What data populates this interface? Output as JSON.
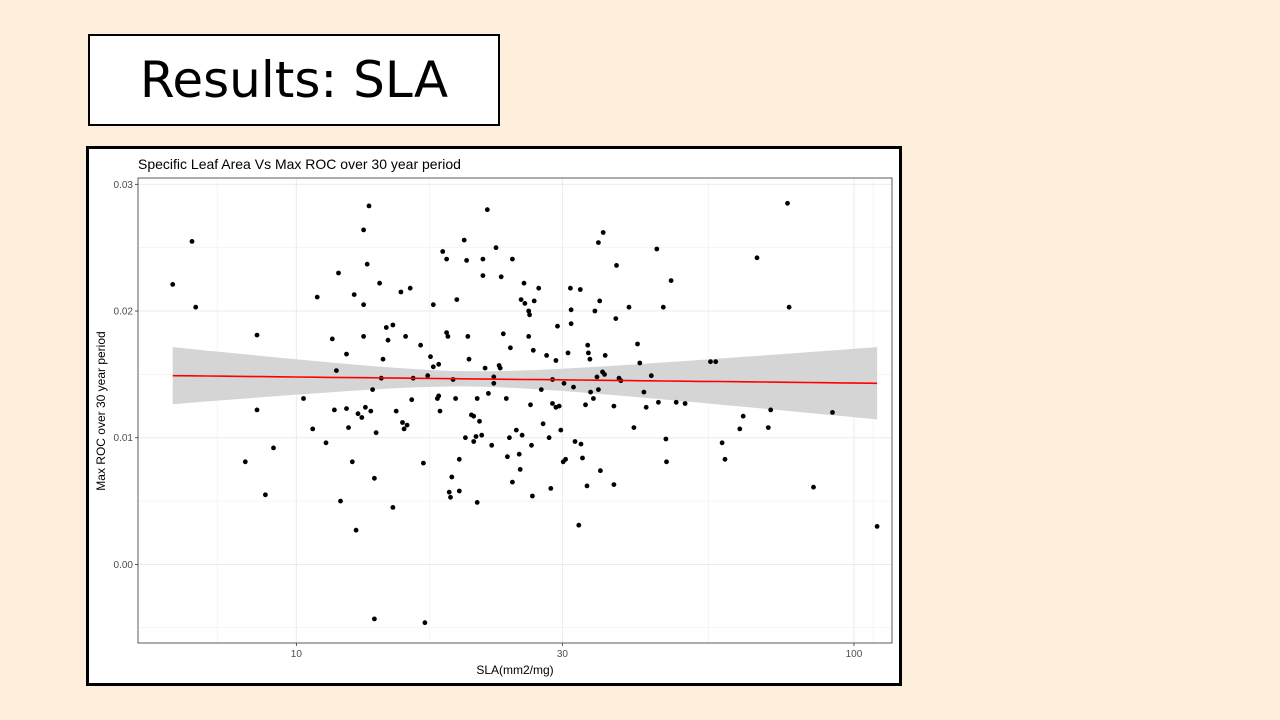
{
  "slide": {
    "title": "Results: SLA"
  },
  "colors": {
    "background": "#fdefdb",
    "ribbon": "#d3d3d3",
    "trend_line": "#ff0000",
    "points": "#000000",
    "grid": "#ebebeb"
  },
  "chart_data": {
    "type": "scatter",
    "title": "Specific Leaf Area Vs Max ROC over 30 year period",
    "xlabel": "SLA(mm2/mg)",
    "ylabel": "Max ROC over 30 year period",
    "x_scale": "log10",
    "xlim": [
      5.2,
      117
    ],
    "ylim": [
      -0.0062,
      0.0305
    ],
    "x_ticks": [
      10,
      30,
      100
    ],
    "x_tick_labels": [
      "10",
      "30",
      "100"
    ],
    "y_ticks": [
      0.0,
      0.01,
      0.02,
      0.03
    ],
    "y_tick_labels": [
      "0.00",
      "0.01",
      "0.02",
      "0.03"
    ],
    "grid": true,
    "trend": {
      "x": [
        6,
        110
      ],
      "y": [
        0.0149,
        0.0143
      ],
      "ci_lower": [
        0.0126,
        0.0114
      ],
      "ci_upper": [
        0.0171,
        0.0171
      ]
    },
    "points": [
      [
        6.0,
        0.0221
      ],
      [
        6.5,
        0.0255
      ],
      [
        6.6,
        0.0203
      ],
      [
        8.1,
        0.0081
      ],
      [
        8.5,
        0.0181
      ],
      [
        8.5,
        0.0122
      ],
      [
        8.8,
        0.0055
      ],
      [
        9.1,
        0.0092
      ],
      [
        10.3,
        0.0131
      ],
      [
        10.7,
        0.0107
      ],
      [
        10.9,
        0.0211
      ],
      [
        11.3,
        0.0096
      ],
      [
        11.6,
        0.0178
      ],
      [
        11.7,
        0.0122
      ],
      [
        11.8,
        0.0153
      ],
      [
        11.9,
        0.023
      ],
      [
        12.0,
        0.005
      ],
      [
        12.3,
        0.0123
      ],
      [
        12.3,
        0.0166
      ],
      [
        12.4,
        0.0108
      ],
      [
        12.6,
        0.0081
      ],
      [
        12.7,
        0.0213
      ],
      [
        12.8,
        0.0027
      ],
      [
        12.9,
        0.0119
      ],
      [
        13.1,
        0.0116
      ],
      [
        13.2,
        0.0264
      ],
      [
        13.2,
        0.018
      ],
      [
        13.2,
        0.0205
      ],
      [
        13.3,
        0.0124
      ],
      [
        13.4,
        0.0237
      ],
      [
        13.5,
        0.0283
      ],
      [
        13.6,
        0.0121
      ],
      [
        13.7,
        0.0138
      ],
      [
        13.8,
        0.0068
      ],
      [
        13.9,
        0.0104
      ],
      [
        13.8,
        -0.0043
      ],
      [
        14.1,
        0.0222
      ],
      [
        14.2,
        0.0147
      ],
      [
        14.3,
        0.0162
      ],
      [
        14.5,
        0.0187
      ],
      [
        14.6,
        0.0177
      ],
      [
        14.9,
        0.0189
      ],
      [
        14.9,
        0.0045
      ],
      [
        15.1,
        0.0121
      ],
      [
        15.4,
        0.0215
      ],
      [
        15.5,
        0.0112
      ],
      [
        15.6,
        0.0107
      ],
      [
        15.7,
        0.018
      ],
      [
        15.8,
        0.011
      ],
      [
        16.0,
        0.0218
      ],
      [
        16.1,
        0.013
      ],
      [
        16.2,
        0.0147
      ],
      [
        16.7,
        0.0173
      ],
      [
        16.9,
        0.008
      ],
      [
        17.0,
        -0.0046
      ],
      [
        17.2,
        0.0149
      ],
      [
        17.4,
        0.0164
      ],
      [
        17.6,
        0.0205
      ],
      [
        17.6,
        0.0156
      ],
      [
        17.9,
        0.0131
      ],
      [
        18.0,
        0.0133
      ],
      [
        18.0,
        0.0158
      ],
      [
        18.1,
        0.0121
      ],
      [
        18.3,
        0.0247
      ],
      [
        18.6,
        0.0241
      ],
      [
        18.6,
        0.0183
      ],
      [
        18.7,
        0.018
      ],
      [
        18.8,
        0.0057
      ],
      [
        18.9,
        0.0053
      ],
      [
        19.0,
        0.0069
      ],
      [
        19.1,
        0.0146
      ],
      [
        19.3,
        0.0131
      ],
      [
        19.4,
        0.0209
      ],
      [
        19.6,
        0.0083
      ],
      [
        19.6,
        0.0058
      ],
      [
        20.0,
        0.0256
      ],
      [
        20.1,
        0.01
      ],
      [
        20.2,
        0.024
      ],
      [
        20.3,
        0.018
      ],
      [
        20.4,
        0.0162
      ],
      [
        20.6,
        0.0118
      ],
      [
        20.8,
        0.0097
      ],
      [
        20.8,
        0.0117
      ],
      [
        21.0,
        0.0101
      ],
      [
        21.1,
        0.0131
      ],
      [
        21.1,
        0.0049
      ],
      [
        21.3,
        0.0113
      ],
      [
        21.5,
        0.0102
      ],
      [
        21.6,
        0.0241
      ],
      [
        21.6,
        0.0228
      ],
      [
        21.8,
        0.0155
      ],
      [
        22.0,
        0.028
      ],
      [
        22.1,
        0.0135
      ],
      [
        22.4,
        0.0094
      ],
      [
        22.6,
        0.0143
      ],
      [
        22.6,
        0.0148
      ],
      [
        22.8,
        0.025
      ],
      [
        23.1,
        0.0157
      ],
      [
        23.2,
        0.0155
      ],
      [
        23.3,
        0.0227
      ],
      [
        23.5,
        0.0182
      ],
      [
        23.8,
        0.0131
      ],
      [
        23.9,
        0.0085
      ],
      [
        24.1,
        0.01
      ],
      [
        24.2,
        0.0171
      ],
      [
        24.4,
        0.0065
      ],
      [
        24.4,
        0.0241
      ],
      [
        24.8,
        0.0106
      ],
      [
        25.1,
        0.0087
      ],
      [
        25.2,
        0.0075
      ],
      [
        25.3,
        0.0209
      ],
      [
        25.4,
        0.0102
      ],
      [
        25.6,
        0.0222
      ],
      [
        25.7,
        0.0206
      ],
      [
        26.1,
        0.02
      ],
      [
        26.1,
        0.018
      ],
      [
        26.2,
        0.0197
      ],
      [
        26.3,
        0.0126
      ],
      [
        26.4,
        0.0094
      ],
      [
        26.5,
        0.0054
      ],
      [
        26.6,
        0.0169
      ],
      [
        26.7,
        0.0208
      ],
      [
        27.2,
        0.0218
      ],
      [
        27.5,
        0.0138
      ],
      [
        27.7,
        0.0111
      ],
      [
        28.1,
        0.0165
      ],
      [
        28.4,
        0.01
      ],
      [
        28.6,
        0.006
      ],
      [
        28.8,
        0.0127
      ],
      [
        28.8,
        0.0146
      ],
      [
        29.2,
        0.0161
      ],
      [
        29.2,
        0.0124
      ],
      [
        29.4,
        0.0188
      ],
      [
        29.6,
        0.0125
      ],
      [
        29.8,
        0.0106
      ],
      [
        30.1,
        0.0081
      ],
      [
        30.2,
        0.0143
      ],
      [
        30.4,
        0.0083
      ],
      [
        30.7,
        0.0167
      ],
      [
        31.0,
        0.0218
      ],
      [
        31.1,
        0.0201
      ],
      [
        31.1,
        0.019
      ],
      [
        31.4,
        0.014
      ],
      [
        31.6,
        0.0097
      ],
      [
        32.1,
        0.0031
      ],
      [
        32.3,
        0.0217
      ],
      [
        32.4,
        0.0095
      ],
      [
        32.6,
        0.0084
      ],
      [
        33.0,
        0.0126
      ],
      [
        33.2,
        0.0062
      ],
      [
        33.3,
        0.0173
      ],
      [
        33.4,
        0.0167
      ],
      [
        33.6,
        0.0162
      ],
      [
        33.7,
        0.0136
      ],
      [
        34.1,
        0.0131
      ],
      [
        34.3,
        0.02
      ],
      [
        34.6,
        0.0148
      ],
      [
        34.8,
        0.0138
      ],
      [
        34.8,
        0.0254
      ],
      [
        35.0,
        0.0208
      ],
      [
        35.1,
        0.0074
      ],
      [
        35.4,
        0.0152
      ],
      [
        35.5,
        0.0262
      ],
      [
        35.7,
        0.015
      ],
      [
        35.8,
        0.0165
      ],
      [
        37.1,
        0.0125
      ],
      [
        37.1,
        0.0063
      ],
      [
        37.4,
        0.0194
      ],
      [
        37.5,
        0.0236
      ],
      [
        37.9,
        0.0147
      ],
      [
        38.2,
        0.0145
      ],
      [
        39.5,
        0.0203
      ],
      [
        40.3,
        0.0108
      ],
      [
        40.9,
        0.0174
      ],
      [
        41.3,
        0.0159
      ],
      [
        42.0,
        0.0136
      ],
      [
        42.4,
        0.0124
      ],
      [
        43.3,
        0.0149
      ],
      [
        44.3,
        0.0249
      ],
      [
        44.6,
        0.0128
      ],
      [
        45.5,
        0.0203
      ],
      [
        46.0,
        0.0099
      ],
      [
        46.1,
        0.0081
      ],
      [
        47.0,
        0.0224
      ],
      [
        48.0,
        0.0128
      ],
      [
        49.8,
        0.0127
      ],
      [
        55.3,
        0.016
      ],
      [
        56.5,
        0.016
      ],
      [
        58.0,
        0.0096
      ],
      [
        58.7,
        0.0083
      ],
      [
        62.4,
        0.0107
      ],
      [
        63.3,
        0.0117
      ],
      [
        67.0,
        0.0242
      ],
      [
        70.2,
        0.0108
      ],
      [
        70.9,
        0.0122
      ],
      [
        76.0,
        0.0285
      ],
      [
        76.5,
        0.0203
      ],
      [
        84.6,
        0.0061
      ],
      [
        91.5,
        0.012
      ],
      [
        110.0,
        0.003
      ]
    ]
  }
}
